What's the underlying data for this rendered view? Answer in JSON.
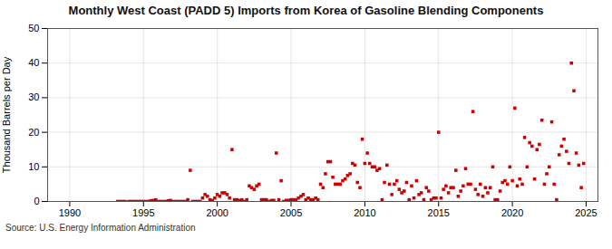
{
  "chart_data": {
    "type": "scatter",
    "title": "Monthly West Coast (PADD 5) Imports from Korea of Gasoline Blending Components",
    "ylabel": "Thousand Barrels per Day",
    "source": "Source: U.S. Energy Information Administration",
    "color": "#cc0000",
    "marker": "square",
    "grid": true,
    "xlim": [
      1988.5,
      2025.8
    ],
    "ylim": [
      0,
      50
    ],
    "xticks": [
      1990,
      1995,
      2000,
      2005,
      2010,
      2015,
      2020,
      2025
    ],
    "yticks": [
      0,
      10,
      20,
      30,
      40,
      50
    ],
    "x": [
      1993.25,
      1993.42,
      1993.58,
      1993.75,
      1994.0,
      1994.17,
      1994.33,
      1994.5,
      1994.67,
      1994.83,
      1995.0,
      1995.17,
      1995.33,
      1995.5,
      1995.67,
      1995.83,
      1996.0,
      1996.17,
      1996.33,
      1996.5,
      1996.67,
      1996.83,
      1997.0,
      1997.17,
      1997.33,
      1997.5,
      1997.67,
      1997.83,
      1998.0,
      1998.17,
      1998.33,
      1998.5,
      1998.67,
      1998.83,
      1999.0,
      1999.17,
      1999.33,
      1999.5,
      1999.67,
      1999.83,
      2000.0,
      2000.17,
      2000.33,
      2000.5,
      2000.67,
      2000.83,
      2001.0,
      2001.17,
      2001.33,
      2001.5,
      2001.67,
      2001.83,
      2002.0,
      2002.17,
      2002.33,
      2002.5,
      2002.67,
      2002.83,
      2003.0,
      2003.17,
      2003.33,
      2003.5,
      2003.67,
      2003.83,
      2004.0,
      2004.17,
      2004.33,
      2004.5,
      2004.67,
      2004.83,
      2005.0,
      2005.17,
      2005.33,
      2005.5,
      2005.67,
      2005.83,
      2006.0,
      2006.17,
      2006.33,
      2006.5,
      2006.67,
      2006.83,
      2007.0,
      2007.17,
      2007.33,
      2007.5,
      2007.67,
      2007.83,
      2008.0,
      2008.17,
      2008.33,
      2008.5,
      2008.67,
      2008.83,
      2009.0,
      2009.17,
      2009.33,
      2009.5,
      2009.67,
      2009.83,
      2010.0,
      2010.17,
      2010.33,
      2010.5,
      2010.67,
      2010.83,
      2011.0,
      2011.17,
      2011.33,
      2011.5,
      2011.67,
      2011.83,
      2012.0,
      2012.17,
      2012.33,
      2012.5,
      2012.67,
      2012.83,
      2013.0,
      2013.17,
      2013.33,
      2013.5,
      2013.67,
      2013.83,
      2014.0,
      2014.17,
      2014.33,
      2014.5,
      2014.67,
      2014.83,
      2015.0,
      2015.17,
      2015.33,
      2015.5,
      2015.67,
      2015.83,
      2016.0,
      2016.17,
      2016.33,
      2016.5,
      2016.67,
      2016.83,
      2017.0,
      2017.17,
      2017.33,
      2017.5,
      2017.67,
      2017.83,
      2018.0,
      2018.17,
      2018.33,
      2018.5,
      2018.67,
      2018.83,
      2019.0,
      2019.17,
      2019.33,
      2019.5,
      2019.67,
      2019.83,
      2020.0,
      2020.17,
      2020.33,
      2020.5,
      2020.67,
      2020.83,
      2021.0,
      2021.17,
      2021.33,
      2021.5,
      2021.67,
      2021.83,
      2022.0,
      2022.17,
      2022.33,
      2022.5,
      2022.67,
      2022.83,
      2023.0,
      2023.17,
      2023.33,
      2023.5,
      2023.67,
      2023.83,
      2024.0,
      2024.17,
      2024.33,
      2024.5,
      2024.67,
      2024.83
    ],
    "values": [
      0,
      0,
      0,
      0,
      0,
      0,
      0,
      0,
      0,
      0,
      0,
      0,
      0,
      0.2,
      0.3,
      0.5,
      0,
      0,
      0,
      0,
      0.2,
      0.3,
      0,
      0,
      0,
      0,
      0,
      0,
      0.5,
      9.0,
      0,
      0,
      0,
      0,
      1.0,
      2.0,
      1.5,
      0.5,
      0.3,
      1.0,
      2.0,
      1.5,
      2.5,
      2.5,
      2.0,
      1.0,
      15.0,
      0.5,
      0.5,
      0.3,
      0.5,
      0,
      0.5,
      4.5,
      4.0,
      3.5,
      4.5,
      5.0,
      0.5,
      0.5,
      0.5,
      0,
      0.3,
      0.3,
      14.0,
      0.5,
      6.0,
      0,
      0.3,
      0.3,
      0.5,
      0.5,
      0.5,
      1.0,
      1.5,
      2.0,
      0.5,
      1.0,
      0.5,
      0.5,
      1.0,
      0.5,
      5.0,
      4.0,
      8.0,
      11.5,
      11.5,
      7.0,
      5.0,
      5.0,
      5.0,
      6.0,
      6.5,
      7.5,
      8.0,
      11.0,
      10.5,
      5.5,
      4.0,
      18.0,
      11.0,
      14.0,
      11.0,
      10.0,
      10.0,
      9.0,
      9.5,
      0.5,
      5.5,
      10.5,
      5.0,
      2.0,
      5.0,
      6.0,
      3.5,
      2.5,
      3.0,
      5.5,
      0.5,
      4.5,
      1.0,
      6.0,
      2.0,
      2.5,
      0.5,
      4.0,
      3.0,
      0.5,
      1.0,
      1.0,
      20.0,
      1.0,
      3.5,
      4.5,
      2.5,
      4.0,
      4.0,
      9.0,
      1.5,
      3.0,
      4.5,
      9.5,
      5.0,
      5.0,
      26.0,
      3.5,
      2.0,
      5.0,
      1.5,
      4.0,
      2.5,
      4.0,
      10.0,
      0.5,
      0.5,
      3.0,
      5.5,
      6.0,
      5.0,
      10.0,
      6.0,
      27.0,
      4.5,
      6.5,
      5.0,
      18.5,
      10.0,
      17.0,
      16.0,
      6.5,
      15.0,
      16.5,
      23.5,
      5.0,
      8.0,
      10.0,
      23.0,
      5.0,
      0.5,
      13.5,
      16.0,
      18.0,
      14.5,
      11.0,
      40.0,
      32.0,
      14.0,
      10.5,
      4.0,
      11.0
    ]
  }
}
